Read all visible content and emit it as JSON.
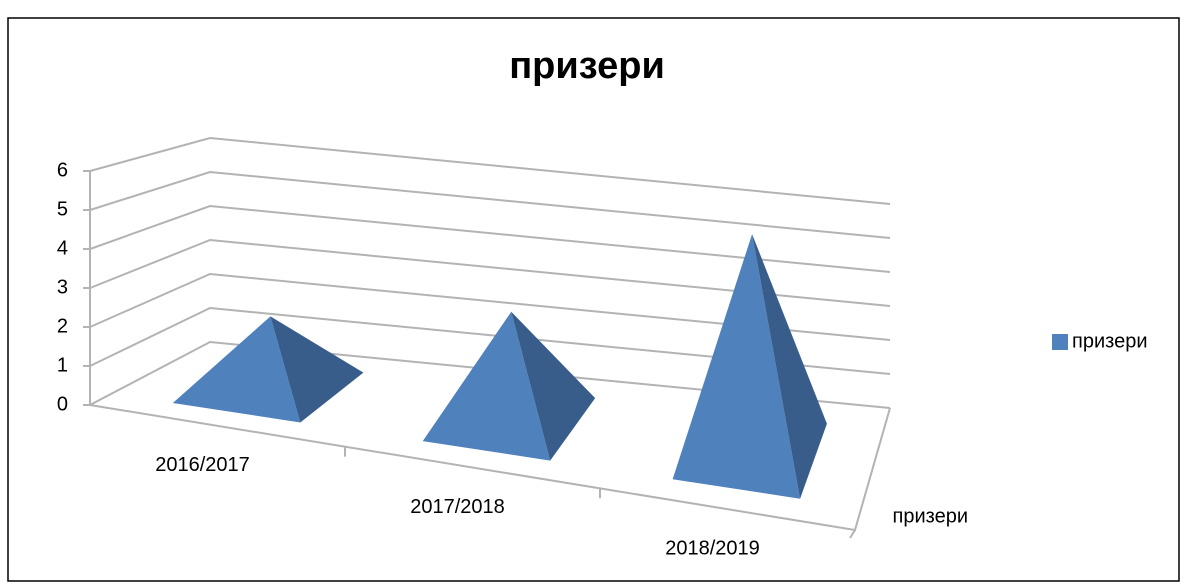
{
  "chart_data": {
    "type": "pyramid3d",
    "title": "призери",
    "categories": [
      "2016/2017",
      "2017/2018",
      "2018/2019"
    ],
    "series": [
      {
        "name": "призери",
        "color": "#4f81bd",
        "values": [
          2,
          3,
          6
        ]
      }
    ],
    "ylim": [
      0,
      6
    ],
    "yticks": [
      0,
      1,
      2,
      3,
      4,
      5,
      6
    ],
    "grid": true,
    "legend": "right"
  }
}
